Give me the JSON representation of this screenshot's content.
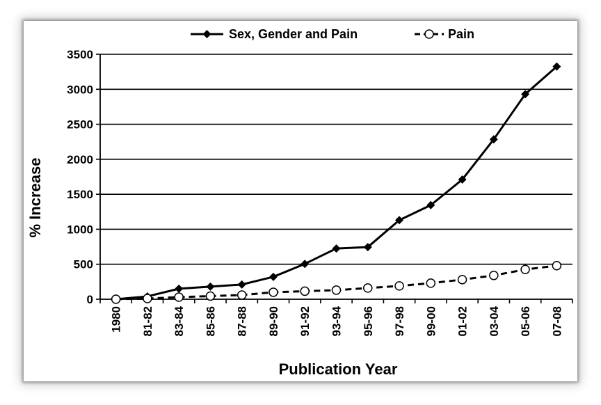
{
  "chart_data": {
    "type": "line",
    "title": "",
    "xlabel": "Publication Year",
    "ylabel": "% Increase",
    "categories": [
      "1980",
      "81-82",
      "83-84",
      "85-86",
      "87-88",
      "89-90",
      "91-92",
      "93-94",
      "95-96",
      "97-98",
      "99-00",
      "01-02",
      "03-04",
      "05-06",
      "07-08"
    ],
    "ylim": [
      0,
      3500
    ],
    "yticks": [
      0,
      500,
      1000,
      1500,
      2000,
      2500,
      3000,
      3500
    ],
    "grid": "horizontal",
    "legend_position": "top",
    "series": [
      {
        "name": "Sex, Gender and Pain",
        "marker": "diamond",
        "line_style": "solid",
        "color": "#000000",
        "values": [
          0,
          40,
          150,
          180,
          210,
          320,
          505,
          725,
          745,
          1130,
          1345,
          1710,
          2285,
          2930,
          3325
        ]
      },
      {
        "name": "Pain",
        "marker": "circle-open",
        "line_style": "dashed",
        "color": "#000000",
        "values": [
          0,
          10,
          30,
          45,
          60,
          100,
          115,
          130,
          160,
          190,
          230,
          280,
          340,
          425,
          480
        ]
      }
    ]
  }
}
